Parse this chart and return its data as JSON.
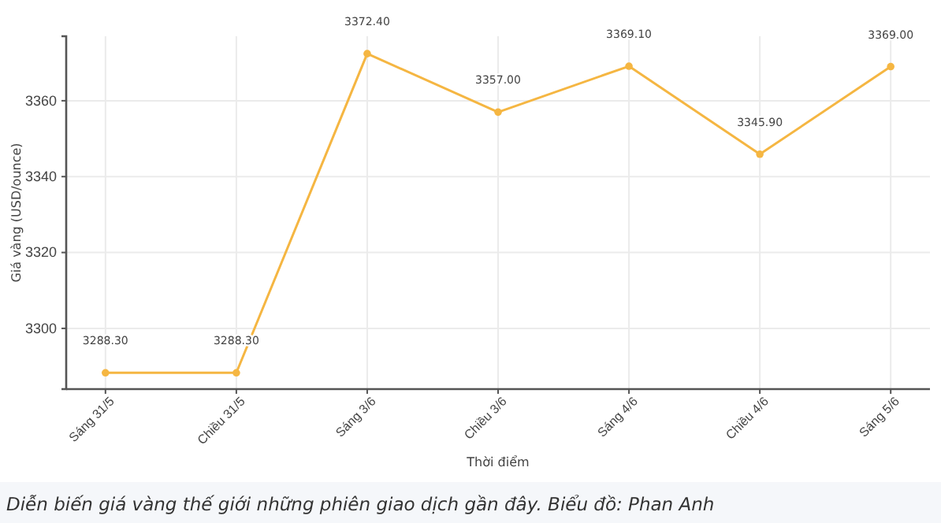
{
  "chart_data": {
    "type": "line",
    "xlabel": "Thời điểm",
    "ylabel": "Giá vàng (USD/ounce)",
    "categories": [
      "Sáng 31/5",
      "Chiều 31/5",
      "Sáng 3/6",
      "Chiều 3/6",
      "Sáng 4/6",
      "Chiều 4/6",
      "Sáng 5/6"
    ],
    "series": [
      {
        "color": "#f5b642",
        "values": [
          3288.3,
          3288.3,
          3372.4,
          3357.0,
          3369.1,
          3345.9,
          3369.0
        ],
        "value_labels": [
          "3288.30",
          "3288.30",
          "3372.40",
          "3357.00",
          "3369.10",
          "3345.90",
          "3369.00"
        ]
      }
    ],
    "ylim": [
      3284,
      3377
    ],
    "yticks": [
      3300,
      3320,
      3340,
      3360
    ],
    "grid": true,
    "marker": "circle",
    "line_style": "solid",
    "annotations": [
      "Diễn biến giá vàng thế giới những phiên giao dịch gần đây. Biểu đồ: Phan Anh"
    ]
  }
}
